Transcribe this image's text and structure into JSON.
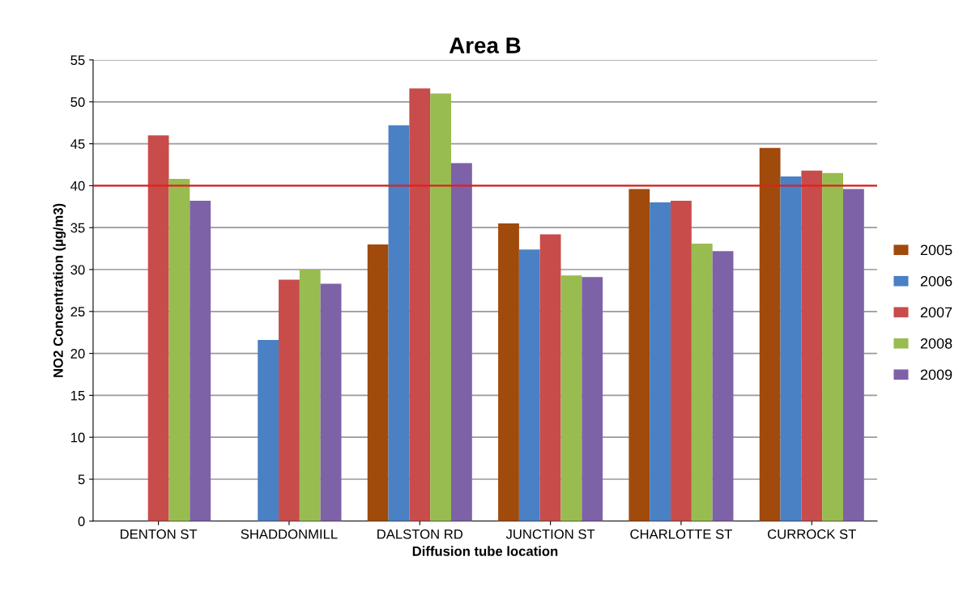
{
  "chart_data": {
    "type": "bar",
    "title": "Area B",
    "xlabel": "Diffusion tube location",
    "ylabel": "NO2 Concentration (µg/m3)",
    "categories": [
      "DENTON ST",
      "SHADDONMILL",
      "DALSTON RD",
      "JUNCTION ST",
      "CHARLOTTE ST",
      "CURROCK ST"
    ],
    "series": [
      {
        "name": "2005",
        "color": "#a04a0c",
        "values": [
          null,
          null,
          33,
          35.5,
          39.6,
          44.5
        ]
      },
      {
        "name": "2006",
        "color": "#4a80c4",
        "values": [
          null,
          21.6,
          47.2,
          32.4,
          38,
          41.1
        ]
      },
      {
        "name": "2007",
        "color": "#c84c4a",
        "values": [
          46,
          28.8,
          51.6,
          34.2,
          38.2,
          41.8
        ]
      },
      {
        "name": "2008",
        "color": "#98bc50",
        "values": [
          40.8,
          30,
          51,
          29.3,
          33.1,
          41.5
        ]
      },
      {
        "name": "2009",
        "color": "#7e62a8",
        "values": [
          38.2,
          28.3,
          42.7,
          29.1,
          32.2,
          39.6
        ]
      }
    ],
    "ylim": [
      0,
      55
    ],
    "yticks": [
      0,
      5,
      10,
      15,
      20,
      25,
      30,
      35,
      40,
      45,
      50,
      55
    ],
    "ref_lines": [
      {
        "axis": "y",
        "value": 40,
        "color": "#e02020"
      }
    ],
    "grid": "y",
    "legend": "right"
  }
}
